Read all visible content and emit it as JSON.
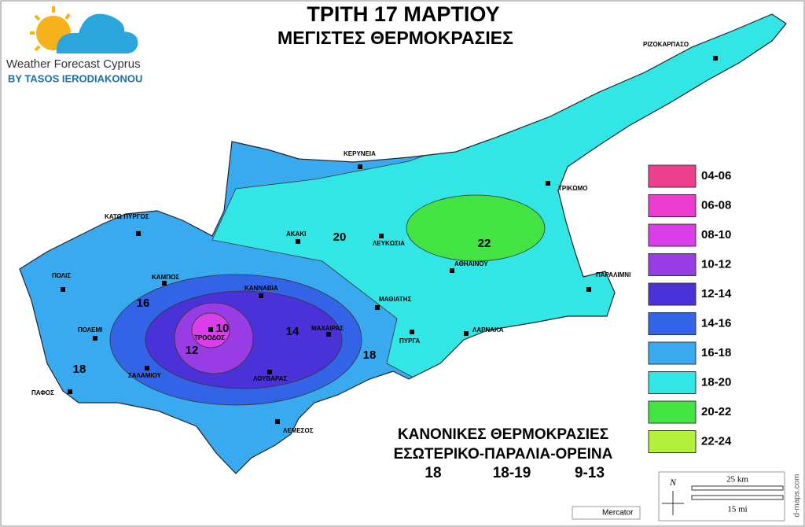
{
  "header": {
    "title": "ΤΡΙΤΗ 17 ΜΑΡΤΙΟΥ",
    "subtitle": "ΜΕΓΙΣΤΕΣ ΘΕΡΜΟΚΡΑΣΙΕΣ"
  },
  "logo": {
    "name": "Weather Forecast Cyprus",
    "byline": "BY TASOS IERODIAKONOU"
  },
  "places": [
    "ΡΙΖΟΚΑΡΠΑΣΟ",
    "ΚΕΡΥΝΕΙΑ",
    "ΤΡΙΚΩΜΟ",
    "ΚΑΤΩ ΠΥΡΓΟΣ",
    "ΑΚΑΚΙ",
    "ΛΕΥΚΩΣΙΑ",
    "ΑΘΗΑΙΝΟΥ",
    "ΠΑΡΑΛΙΜΝΙ",
    "ΠΟΛΙΣ",
    "ΚΑΜΠΟΣ",
    "ΚΑΝΝΑΒΙΑ",
    "ΜΑΘΙΑΤΗΣ",
    "ΠΟΛΕΜΙ",
    "ΤΡΟΟΔΟΣ",
    "ΜΑΧΑΙΡΑΣ",
    "ΠΥΡΓΑ",
    "ΛΑΡΝΑΚΑ",
    "ΣΑΛΑΜΙΟΥ",
    "ΛΟΥΒΑΡΑΣ",
    "ΠΑΦΟΣ",
    "ΛΕΜΕΣΟΣ"
  ],
  "zone_labels": [
    "20",
    "22",
    "16",
    "10",
    "14",
    "12",
    "18",
    "18"
  ],
  "legend": [
    {
      "label": "04-06",
      "color": "#ef3f8f"
    },
    {
      "label": "06-08",
      "color": "#ec3cd0"
    },
    {
      "label": "08-10",
      "color": "#d93ee8"
    },
    {
      "label": "10-12",
      "color": "#9a3ce6"
    },
    {
      "label": "12-14",
      "color": "#4a32d8"
    },
    {
      "label": "14-16",
      "color": "#3363e6"
    },
    {
      "label": "16-18",
      "color": "#3aaaf0"
    },
    {
      "label": "18-20",
      "color": "#33e6e6"
    },
    {
      "label": "20-22",
      "color": "#44e344"
    },
    {
      "label": "22-24",
      "color": "#b5f03c"
    }
  ],
  "normals": {
    "title": "ΚΑΝΟΝΙΚΕΣ ΘΕΡΜΟΚΡΑΣΙΕΣ",
    "regions": "ΕΣΩΤΕΡΙΚΟ-ΠΑΡΑΛΙΑ-ΟΡΕΙΝΑ",
    "values": [
      "18",
      "18-19",
      "9-13"
    ]
  },
  "map_info": {
    "north": "N",
    "scale_km": "25 km",
    "scale_mi": "15 mi",
    "projection": "Mercator",
    "source": "d-maps.com"
  }
}
